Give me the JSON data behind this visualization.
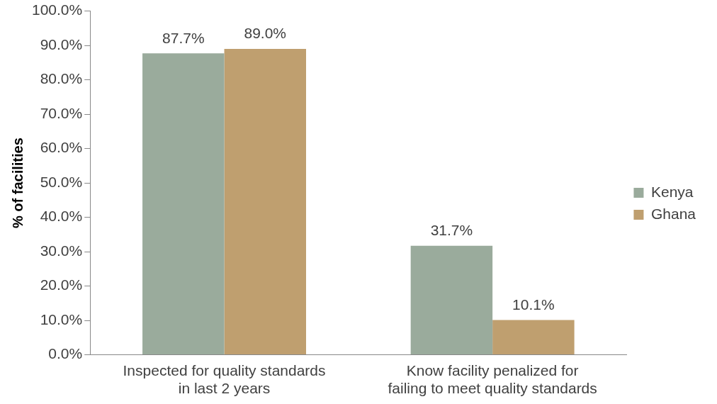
{
  "chart_data": {
    "type": "bar",
    "ylabel": "% of facilities",
    "categories": [
      "Inspected for quality standards in last 2 years",
      "Know facility penalized for failing to meet quality standards"
    ],
    "series": [
      {
        "name": "Kenya",
        "color": "#9aab9c",
        "values": [
          87.7,
          31.7
        ],
        "value_labels": [
          "87.7%",
          "31.7%"
        ]
      },
      {
        "name": "Ghana",
        "color": "#bf9f6f",
        "values": [
          89.0,
          10.1
        ],
        "value_labels": [
          "89.0%",
          "10.1%"
        ]
      }
    ],
    "ylim": [
      0,
      100
    ],
    "yticks": [
      {
        "value": 0,
        "label": "0.0%"
      },
      {
        "value": 10,
        "label": "10.0%"
      },
      {
        "value": 20,
        "label": "20.0%"
      },
      {
        "value": 30,
        "label": "30.0%"
      },
      {
        "value": 40,
        "label": "40.0%"
      },
      {
        "value": 50,
        "label": "50.0%"
      },
      {
        "value": 60,
        "label": "60.0%"
      },
      {
        "value": 70,
        "label": "70.0%"
      },
      {
        "value": 80,
        "label": "80.0%"
      },
      {
        "value": 90,
        "label": "90.0%"
      },
      {
        "value": 100,
        "label": "100.0%"
      }
    ],
    "grid": false,
    "legend": "right"
  }
}
